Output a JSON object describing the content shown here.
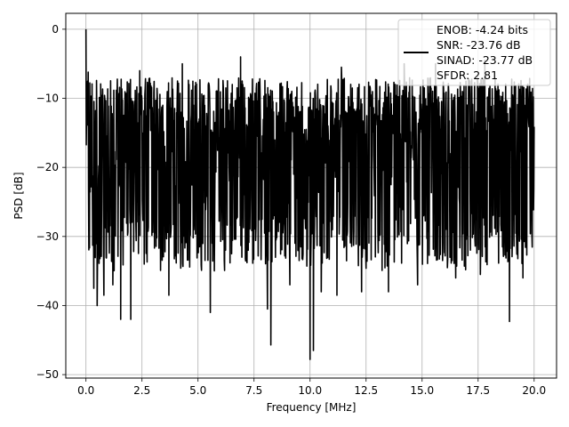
{
  "chart_data": {
    "type": "line",
    "title": "",
    "xlabel": "Frequency [MHz]",
    "ylabel": "PSD [dB]",
    "xlim": [
      -0.9,
      21.0
    ],
    "ylim": [
      -50.5,
      2.3
    ],
    "xticks": [
      0.0,
      2.5,
      5.0,
      7.5,
      10.0,
      12.5,
      15.0,
      17.5,
      20.0
    ],
    "xtick_labels": [
      "0.0",
      "2.5",
      "5.0",
      "7.5",
      "10.0",
      "12.5",
      "15.0",
      "17.5",
      "20.0"
    ],
    "yticks": [
      0,
      -10,
      -20,
      -30,
      -40,
      -50
    ],
    "ytick_labels": [
      "0",
      "−10",
      "−20",
      "−30",
      "−40",
      "−50"
    ],
    "grid": true,
    "legend": {
      "placement": "top-right",
      "lines": [
        "ENOB: -4.24 bits",
        "SNR: -23.76 dB",
        "SINAD: -23.77 dB",
        "SFDR: 2.81"
      ]
    },
    "series": [
      {
        "color": "#000000",
        "x_range": [
          0.0,
          20.0
        ],
        "envelope": {
          "typical_min_dB": -27,
          "typical_max_dB": -7,
          "peak_dB": 0.0,
          "peak_freq_MHz": 0.0
        },
        "notable_dips": [
          {
            "x": 0.35,
            "y": -37.5
          },
          {
            "x": 0.5,
            "y": -40.0
          },
          {
            "x": 0.8,
            "y": -38.5
          },
          {
            "x": 1.2,
            "y": -37.0
          },
          {
            "x": 1.55,
            "y": -42.0
          },
          {
            "x": 2.0,
            "y": -42.0
          },
          {
            "x": 2.6,
            "y": -34.0
          },
          {
            "x": 3.7,
            "y": -38.5
          },
          {
            "x": 4.3,
            "y": -35.5
          },
          {
            "x": 5.55,
            "y": -41.0
          },
          {
            "x": 6.5,
            "y": -32.5
          },
          {
            "x": 8.1,
            "y": -40.5
          },
          {
            "x": 8.25,
            "y": -45.7
          },
          {
            "x": 9.1,
            "y": -37.0
          },
          {
            "x": 10.0,
            "y": -47.8
          },
          {
            "x": 10.15,
            "y": -46.5
          },
          {
            "x": 10.5,
            "y": -38.0
          },
          {
            "x": 11.2,
            "y": -38.5
          },
          {
            "x": 12.3,
            "y": -38.0
          },
          {
            "x": 13.5,
            "y": -38.0
          },
          {
            "x": 14.8,
            "y": -37.0
          },
          {
            "x": 16.5,
            "y": -36.0
          },
          {
            "x": 17.6,
            "y": -35.5
          },
          {
            "x": 18.9,
            "y": -42.3
          },
          {
            "x": 19.5,
            "y": -36.0
          }
        ],
        "notable_peaks": [
          {
            "x": 0.0,
            "y": 0.0
          },
          {
            "x": 2.4,
            "y": -6.0
          },
          {
            "x": 4.3,
            "y": -5.0
          },
          {
            "x": 6.9,
            "y": -4.0
          },
          {
            "x": 11.4,
            "y": -5.5
          },
          {
            "x": 14.2,
            "y": -5.0
          },
          {
            "x": 15.6,
            "y": -5.0
          },
          {
            "x": 17.8,
            "y": -4.5
          }
        ]
      }
    ]
  }
}
